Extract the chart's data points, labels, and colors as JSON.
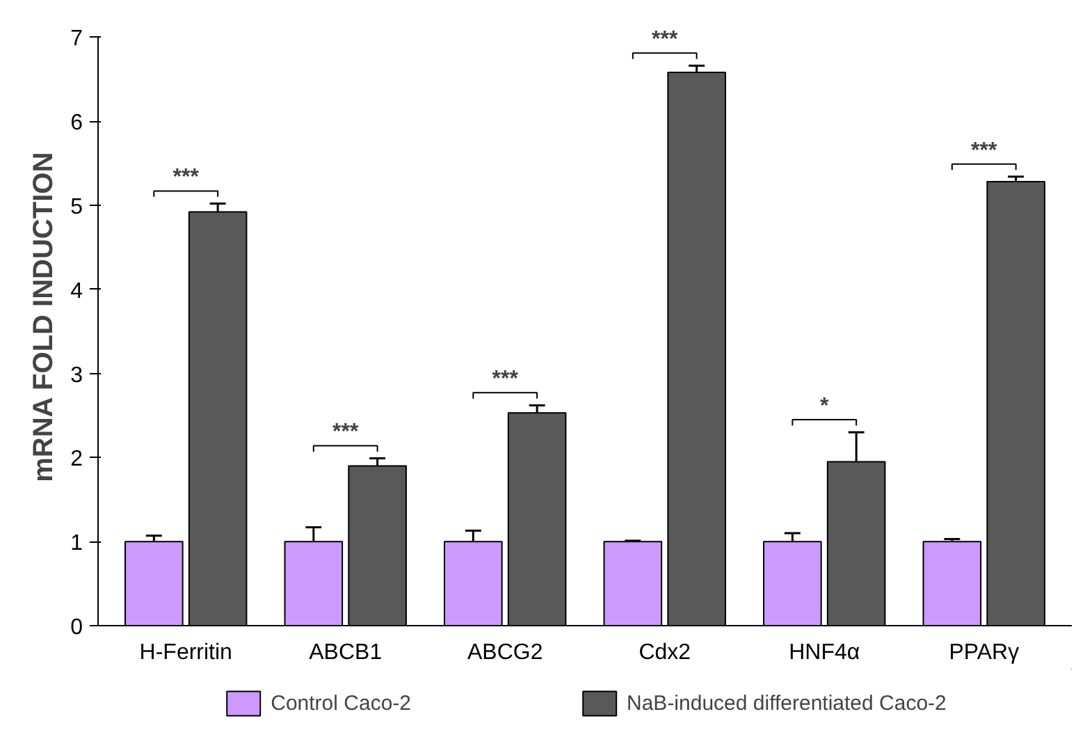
{
  "chart_data": {
    "type": "bar",
    "ylabel": "mRNA FOLD INDUCTION",
    "categories": [
      "H-Ferritin",
      "ABCB1",
      "ABCG2",
      "Cdx2",
      "HNF4α",
      "PPARγ"
    ],
    "series": [
      {
        "name": "Control Caco-2",
        "color": "#cc99ff",
        "values": [
          1.0,
          1.0,
          1.0,
          1.0,
          1.0,
          1.0
        ],
        "errors": [
          [
            1.0,
            1.07
          ],
          [
            1.0,
            1.17
          ],
          [
            1.0,
            1.13
          ],
          [
            1.0,
            1.01
          ],
          [
            1.0,
            1.1
          ],
          [
            1.0,
            1.03
          ]
        ]
      },
      {
        "name": "NaB-induced differentiated Caco-2",
        "color": "#595959",
        "values": [
          4.92,
          1.9,
          2.53,
          6.58,
          1.95,
          5.28
        ],
        "errors": [
          [
            4.92,
            5.02
          ],
          [
            1.9,
            1.99
          ],
          [
            2.53,
            2.62
          ],
          [
            6.58,
            6.66
          ],
          [
            1.95,
            2.3
          ],
          [
            5.28,
            5.34
          ]
        ]
      }
    ],
    "ylim": [
      0,
      7
    ],
    "yticks": [
      0,
      1,
      2,
      3,
      4,
      5,
      6,
      7
    ],
    "grid": false,
    "legend": "bottom",
    "annotations": [
      "***",
      "***",
      "***",
      "***",
      "*",
      "***"
    ]
  }
}
